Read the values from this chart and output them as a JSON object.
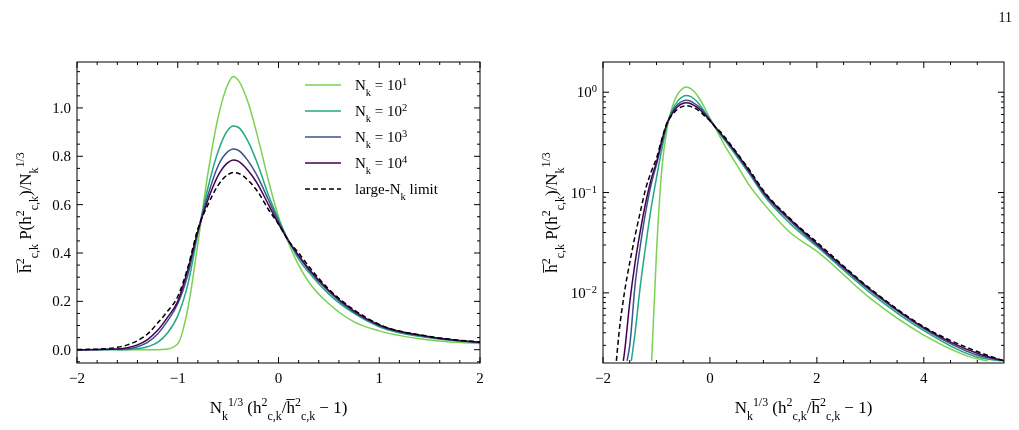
{
  "chart_data": [
    {
      "type": "line",
      "xlabel": "N$_{k}$$^{1/3}$ (h$^{2}$$_{c,k}$/h̅$^{2}$$_{c,k}$ − 1)",
      "ylabel": "h̅$^{2}$$_{c,k}$ P(h$^{2}$$_{c,k}$)/N$_{k}$$^{1/3}$",
      "legend": "top right",
      "xlim": [
        -2,
        2
      ],
      "ylim": [
        -0.055,
        1.19
      ],
      "xticks": [
        {
          "value": -2,
          "label": "−2"
        },
        {
          "value": -1.8,
          "label": null
        },
        {
          "value": -1.6,
          "label": null
        },
        {
          "value": -1.4,
          "label": null
        },
        {
          "value": -1.2,
          "label": null
        },
        {
          "value": -1,
          "label": "−1"
        },
        {
          "value": -0.8,
          "label": null
        },
        {
          "value": -0.6,
          "label": null
        },
        {
          "value": -0.4,
          "label": null
        },
        {
          "value": -0.2,
          "label": null
        },
        0,
        {
          "value": 0.2,
          "label": null
        },
        {
          "value": 0.4,
          "label": null
        },
        {
          "value": 0.6,
          "label": null
        },
        {
          "value": 0.8,
          "label": null
        },
        1,
        {
          "value": 1.2,
          "label": null
        },
        {
          "value": 1.4,
          "label": null
        },
        {
          "value": 1.6,
          "label": null
        },
        {
          "value": 1.8,
          "label": null
        },
        2
      ],
      "yticks": [
        {
          "value": -0.05,
          "label": null
        },
        {
          "value": 0,
          "label": "0.0"
        },
        {
          "value": 0.05,
          "label": null
        },
        {
          "value": 0.1,
          "label": null
        },
        {
          "value": 0.15,
          "label": null
        },
        0.2,
        {
          "value": 0.25,
          "label": null
        },
        {
          "value": 0.3,
          "label": null
        },
        {
          "value": 0.35,
          "label": null
        },
        0.4,
        {
          "value": 0.45,
          "label": null
        },
        {
          "value": 0.5,
          "label": null
        },
        {
          "value": 0.55,
          "label": null
        },
        0.6,
        {
          "value": 0.65,
          "label": null
        },
        {
          "value": 0.7,
          "label": null
        },
        {
          "value": 0.75,
          "label": null
        },
        0.8,
        {
          "value": 0.85,
          "label": null
        },
        {
          "value": 0.9,
          "label": null
        },
        {
          "value": 0.95,
          "label": null
        },
        {
          "value": 1,
          "label": "1.0"
        },
        {
          "value": 1.05,
          "label": null
        },
        {
          "value": 1.1,
          "label": null
        },
        {
          "value": 1.15,
          "label": null
        }
      ],
      "x": [
        -2,
        -1.8,
        -1.7,
        -1.6,
        -1.5,
        -1.4,
        -1.3,
        -1.2,
        -1.1,
        -1,
        -0.9,
        -0.8,
        -0.7,
        -0.6,
        -0.5,
        -0.45,
        -0.4,
        -0.3,
        -0.2,
        -0.1,
        0,
        0.1,
        0.2,
        0.3,
        0.5,
        0.75,
        1,
        1.5,
        2
      ],
      "series": [
        {
          "name": "N$_{k}$ = 10$^{1}$",
          "color": "#7ad151",
          "values": [
            null,
            null,
            null,
            0,
            0,
            0,
            0,
            0,
            0.003,
            0.025,
            0.17,
            0.44,
            0.73,
            0.96,
            1.1,
            1.13,
            1.115,
            1.02,
            0.87,
            0.7,
            0.55,
            0.44,
            0.35,
            0.28,
            0.19,
            0.115,
            0.078,
            0.04,
            0.026
          ]
        },
        {
          "name": "N$_{k}$ = 10$^{2}$",
          "color": "#22a884",
          "values": [
            0,
            0,
            0,
            0,
            0.001,
            0.004,
            0.012,
            0.03,
            0.07,
            0.14,
            0.27,
            0.48,
            0.67,
            0.82,
            0.91,
            0.925,
            0.92,
            0.86,
            0.76,
            0.64,
            0.54,
            0.45,
            0.375,
            0.32,
            0.23,
            0.15,
            0.095,
            0.049,
            0.029
          ]
        },
        {
          "name": "N$_{k}$ = 10$^{3}$",
          "color": "#3b528b",
          "values": [
            0,
            0,
            0.001,
            0.002,
            0.003,
            0.012,
            0.03,
            0.065,
            0.12,
            0.19,
            0.31,
            0.49,
            0.64,
            0.76,
            0.82,
            0.83,
            0.825,
            0.78,
            0.71,
            0.62,
            0.53,
            0.45,
            0.385,
            0.33,
            0.24,
            0.155,
            0.099,
            0.052,
            0.03
          ]
        },
        {
          "name": "N$_{k}$ = 10$^{4}$",
          "color": "#440154",
          "values": [
            0,
            0.001,
            0.002,
            0.003,
            0.008,
            0.02,
            0.042,
            0.08,
            0.135,
            0.2,
            0.33,
            0.49,
            0.62,
            0.72,
            0.775,
            0.785,
            0.78,
            0.74,
            0.68,
            0.6,
            0.52,
            0.45,
            0.39,
            0.335,
            0.245,
            0.16,
            0.102,
            0.054,
            0.031
          ]
        },
        {
          "name": "large-N$_{k}$ limit",
          "color": "#000000",
          "line_style": "dashed",
          "values": [
            0.001,
            0.002,
            0.004,
            0.01,
            0.02,
            0.037,
            0.065,
            0.11,
            0.16,
            0.22,
            0.34,
            0.5,
            0.6,
            0.68,
            0.725,
            0.733,
            0.73,
            0.7,
            0.65,
            0.58,
            0.52,
            0.45,
            0.4,
            0.345,
            0.25,
            0.165,
            0.105,
            0.055,
            0.032
          ]
        }
      ]
    },
    {
      "type": "line",
      "xlabel": "N$_{k}$$^{1/3}$ (h$^{2}$$_{c,k}$/h̅$^{2}$$_{c,k}$ − 1)",
      "ylabel": "h̅$^{2}$$_{c,k}$ P(h$^{2}$$_{c,k}$)/N$_{k}$$^{1/3}$",
      "log": true,
      "annotations": [
        "11"
      ],
      "xlim": [
        -2,
        5.5
      ],
      "ylim": [
        0.002,
        2
      ],
      "xticks": [
        {
          "value": -2,
          "label": "−2"
        },
        {
          "value": -1.5,
          "label": null
        },
        {
          "value": -1,
          "label": null
        },
        {
          "value": -0.5,
          "label": null
        },
        0,
        {
          "value": 0.5,
          "label": null
        },
        {
          "value": 1,
          "label": null
        },
        {
          "value": 1.5,
          "label": null
        },
        2,
        {
          "value": 2.5,
          "label": null
        },
        {
          "value": 3,
          "label": null
        },
        {
          "value": 3.5,
          "label": null
        },
        4,
        {
          "value": 4.5,
          "label": null
        },
        {
          "value": 5,
          "label": null
        }
      ],
      "yticks": [
        {
          "value": 0.003,
          "label": null
        },
        {
          "value": 0.004,
          "label": null
        },
        {
          "value": 0.005,
          "label": null
        },
        {
          "value": 0.006,
          "label": null
        },
        {
          "value": 0.007,
          "label": null
        },
        {
          "value": 0.008,
          "label": null
        },
        {
          "value": 0.009,
          "label": null
        },
        {
          "value": 0.01,
          "label": "10$^{−2}$"
        },
        {
          "value": 0.02,
          "label": null
        },
        {
          "value": 0.03,
          "label": null
        },
        {
          "value": 0.04,
          "label": null
        },
        {
          "value": 0.05,
          "label": null
        },
        {
          "value": 0.06,
          "label": null
        },
        {
          "value": 0.07,
          "label": null
        },
        {
          "value": 0.08,
          "label": null
        },
        {
          "value": 0.09,
          "label": null
        },
        {
          "value": 0.1,
          "label": "10$^{−1}$"
        },
        {
          "value": 0.2,
          "label": null
        },
        {
          "value": 0.3,
          "label": null
        },
        {
          "value": 0.4,
          "label": null
        },
        {
          "value": 0.5,
          "label": null
        },
        {
          "value": 0.6,
          "label": null
        },
        {
          "value": 0.7,
          "label": null
        },
        {
          "value": 0.8,
          "label": null
        },
        {
          "value": 0.9,
          "label": null
        },
        {
          "value": 1,
          "label": "10$^{0}$"
        }
      ],
      "series": [
        {
          "color": "#7ad151",
          "x": [
            -1.09,
            -1,
            -0.9,
            -0.8,
            -0.7,
            -0.6,
            -0.5,
            -0.45,
            -0.4,
            -0.3,
            -0.2,
            -0.1,
            0,
            0.1,
            0.2,
            0.3,
            0.5,
            0.75,
            1,
            1.5,
            2,
            3,
            4,
            5,
            5.2
          ],
          "values": [
            0.0021,
            0.025,
            0.17,
            0.44,
            0.73,
            0.96,
            1.1,
            1.13,
            1.115,
            1.02,
            0.87,
            0.7,
            0.55,
            0.44,
            0.35,
            0.28,
            0.19,
            0.115,
            0.078,
            0.04,
            0.026,
            0.0088,
            0.0038,
            0.0022,
            0.0021
          ]
        },
        {
          "color": "#22a884",
          "x": [
            -1.47,
            -1.4,
            -1.3,
            -1.2,
            -1.1,
            -1,
            -0.9,
            -0.8,
            -0.7,
            -0.6,
            -0.5,
            -0.45,
            -0.4,
            -0.3,
            -0.2,
            -0.1,
            0,
            0.1,
            0.2,
            0.3,
            0.5,
            0.75,
            1,
            1.5,
            2,
            3,
            4,
            5,
            5.45
          ],
          "values": [
            0.0021,
            0.004,
            0.012,
            0.03,
            0.07,
            0.14,
            0.27,
            0.48,
            0.67,
            0.82,
            0.91,
            0.925,
            0.92,
            0.86,
            0.76,
            0.64,
            0.54,
            0.45,
            0.375,
            0.32,
            0.23,
            0.15,
            0.095,
            0.049,
            0.029,
            0.01,
            0.0042,
            0.0023,
            0.0021
          ]
        },
        {
          "color": "#3b528b",
          "x": [
            -1.55,
            -1.5,
            -1.4,
            -1.3,
            -1.2,
            -1.1,
            -1,
            -0.9,
            -0.8,
            -0.7,
            -0.6,
            -0.5,
            -0.45,
            -0.4,
            -0.3,
            -0.2,
            -0.1,
            0,
            0.1,
            0.2,
            0.3,
            0.5,
            0.75,
            1,
            1.5,
            2,
            3,
            4,
            5,
            5.5
          ],
          "values": [
            0.0021,
            0.003,
            0.012,
            0.03,
            0.065,
            0.12,
            0.19,
            0.31,
            0.49,
            0.64,
            0.76,
            0.82,
            0.83,
            0.825,
            0.78,
            0.71,
            0.62,
            0.53,
            0.45,
            0.385,
            0.33,
            0.24,
            0.155,
            0.099,
            0.052,
            0.03,
            0.0105,
            0.0044,
            0.0024,
            0.0021
          ]
        },
        {
          "color": "#440154",
          "x": [
            -1.62,
            -1.6,
            -1.5,
            -1.4,
            -1.3,
            -1.2,
            -1.1,
            -1,
            -0.9,
            -0.8,
            -0.7,
            -0.6,
            -0.5,
            -0.45,
            -0.4,
            -0.3,
            -0.2,
            -0.1,
            0,
            0.1,
            0.2,
            0.3,
            0.5,
            0.75,
            1,
            1.5,
            2,
            3,
            4,
            5,
            5.5
          ],
          "values": [
            0.0021,
            0.0025,
            0.008,
            0.02,
            0.042,
            0.08,
            0.135,
            0.2,
            0.33,
            0.49,
            0.62,
            0.72,
            0.775,
            0.785,
            0.78,
            0.74,
            0.68,
            0.6,
            0.52,
            0.45,
            0.39,
            0.335,
            0.245,
            0.16,
            0.102,
            0.054,
            0.031,
            0.0108,
            0.0045,
            0.0025,
            0.0021
          ]
        },
        {
          "color": "#000000",
          "line_style": "dashed",
          "x": [
            -1.75,
            -1.7,
            -1.6,
            -1.5,
            -1.4,
            -1.3,
            -1.2,
            -1.1,
            -1,
            -0.9,
            -0.8,
            -0.7,
            -0.6,
            -0.5,
            -0.45,
            -0.4,
            -0.3,
            -0.2,
            -0.1,
            0,
            0.1,
            0.2,
            0.3,
            0.5,
            0.75,
            1,
            1.5,
            2,
            3,
            4,
            5,
            5.5
          ],
          "values": [
            0.0021,
            0.004,
            0.01,
            0.02,
            0.037,
            0.065,
            0.11,
            0.16,
            0.22,
            0.34,
            0.5,
            0.6,
            0.68,
            0.725,
            0.733,
            0.73,
            0.7,
            0.65,
            0.58,
            0.52,
            0.45,
            0.4,
            0.345,
            0.25,
            0.165,
            0.105,
            0.055,
            0.032,
            0.011,
            0.0046,
            0.0026,
            0.0021
          ]
        }
      ]
    }
  ]
}
